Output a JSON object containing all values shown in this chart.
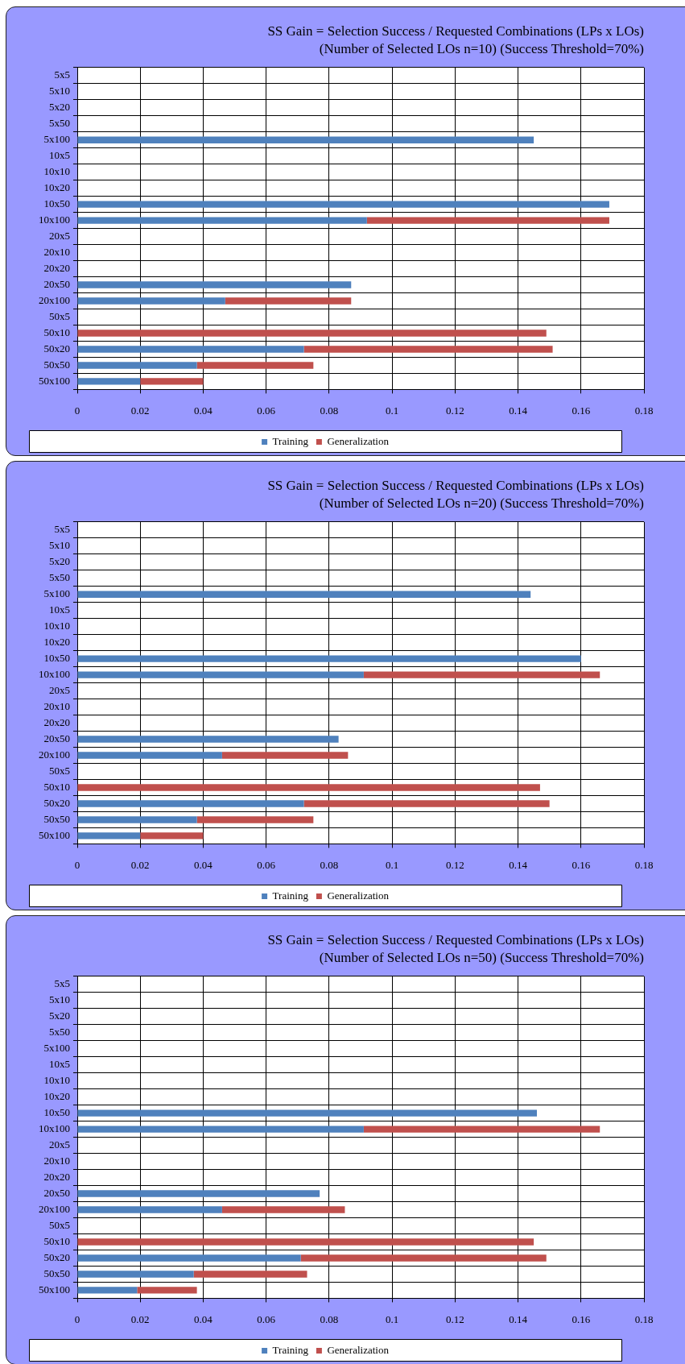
{
  "chart_data": [
    {
      "type": "bar",
      "orientation": "horizontal",
      "stacked": true,
      "title": "SS Gain = Selection Success / Requested Combinations (LPs x LOs)",
      "subtitle": "(Number of Selected LOs n=10) (Success Threshold=70%)",
      "categories": [
        "5x5",
        "5x10",
        "5x20",
        "5x50",
        "5x100",
        "10x5",
        "10x10",
        "10x20",
        "10x50",
        "10x100",
        "20x5",
        "20x10",
        "20x20",
        "20x50",
        "20x100",
        "50x5",
        "50x10",
        "50x20",
        "50x50",
        "50x100"
      ],
      "series": [
        {
          "name": "Training",
          "color": "#4f81bd",
          "values": [
            null,
            null,
            null,
            null,
            0.145,
            null,
            null,
            null,
            0.169,
            0.092,
            null,
            null,
            null,
            0.087,
            0.047,
            null,
            null,
            0.072,
            0.038,
            0.02
          ]
        },
        {
          "name": "Generalization",
          "color": "#c0504d",
          "values": [
            null,
            null,
            null,
            null,
            null,
            null,
            null,
            null,
            null,
            0.077,
            null,
            null,
            null,
            null,
            0.04,
            null,
            0.149,
            0.079,
            0.037,
            0.02
          ]
        }
      ],
      "xlim": [
        0,
        0.18
      ],
      "xticks": [
        0,
        0.02,
        0.04,
        0.06,
        0.08,
        0.1,
        0.12,
        0.14,
        0.16,
        0.18
      ],
      "grid": true,
      "legend": "bottom"
    },
    {
      "type": "bar",
      "orientation": "horizontal",
      "stacked": true,
      "title": "SS Gain = Selection Success / Requested Combinations (LPs x LOs)",
      "subtitle": "(Number of Selected LOs n=20) (Success Threshold=70%)",
      "categories": [
        "5x5",
        "5x10",
        "5x20",
        "5x50",
        "5x100",
        "10x5",
        "10x10",
        "10x20",
        "10x50",
        "10x100",
        "20x5",
        "20x10",
        "20x20",
        "20x50",
        "20x100",
        "50x5",
        "50x10",
        "50x20",
        "50x50",
        "50x100"
      ],
      "series": [
        {
          "name": "Training",
          "color": "#4f81bd",
          "values": [
            null,
            null,
            null,
            null,
            0.144,
            null,
            null,
            null,
            0.16,
            0.091,
            null,
            null,
            null,
            0.083,
            0.046,
            null,
            null,
            0.072,
            0.038,
            0.02
          ]
        },
        {
          "name": "Generalization",
          "color": "#c0504d",
          "values": [
            null,
            null,
            null,
            null,
            null,
            null,
            null,
            null,
            null,
            0.075,
            null,
            null,
            null,
            null,
            0.04,
            null,
            0.147,
            0.078,
            0.037,
            0.02
          ]
        }
      ],
      "xlim": [
        0,
        0.18
      ],
      "xticks": [
        0,
        0.02,
        0.04,
        0.06,
        0.08,
        0.1,
        0.12,
        0.14,
        0.16,
        0.18
      ],
      "grid": true,
      "legend": "bottom"
    },
    {
      "type": "bar",
      "orientation": "horizontal",
      "stacked": true,
      "title": "SS Gain = Selection Success / Requested Combinations (LPs x LOs)",
      "subtitle": "(Number of Selected LOs n=50) (Success Threshold=70%)",
      "categories": [
        "5x5",
        "5x10",
        "5x20",
        "5x50",
        "5x100",
        "10x5",
        "10x10",
        "10x20",
        "10x50",
        "10x100",
        "20x5",
        "20x10",
        "20x20",
        "20x50",
        "20x100",
        "50x5",
        "50x10",
        "50x20",
        "50x50",
        "50x100"
      ],
      "series": [
        {
          "name": "Training",
          "color": "#4f81bd",
          "values": [
            null,
            null,
            null,
            null,
            null,
            null,
            null,
            null,
            0.146,
            0.091,
            null,
            null,
            null,
            0.077,
            0.046,
            null,
            null,
            0.071,
            0.037,
            0.019
          ]
        },
        {
          "name": "Generalization",
          "color": "#c0504d",
          "values": [
            null,
            null,
            null,
            null,
            null,
            null,
            null,
            null,
            null,
            0.075,
            null,
            null,
            null,
            null,
            0.039,
            null,
            0.145,
            0.078,
            0.036,
            0.019
          ]
        }
      ],
      "xlim": [
        0,
        0.18
      ],
      "xticks": [
        0,
        0.02,
        0.04,
        0.06,
        0.08,
        0.1,
        0.12,
        0.14,
        0.16,
        0.18
      ],
      "grid": true,
      "legend": "bottom"
    }
  ]
}
